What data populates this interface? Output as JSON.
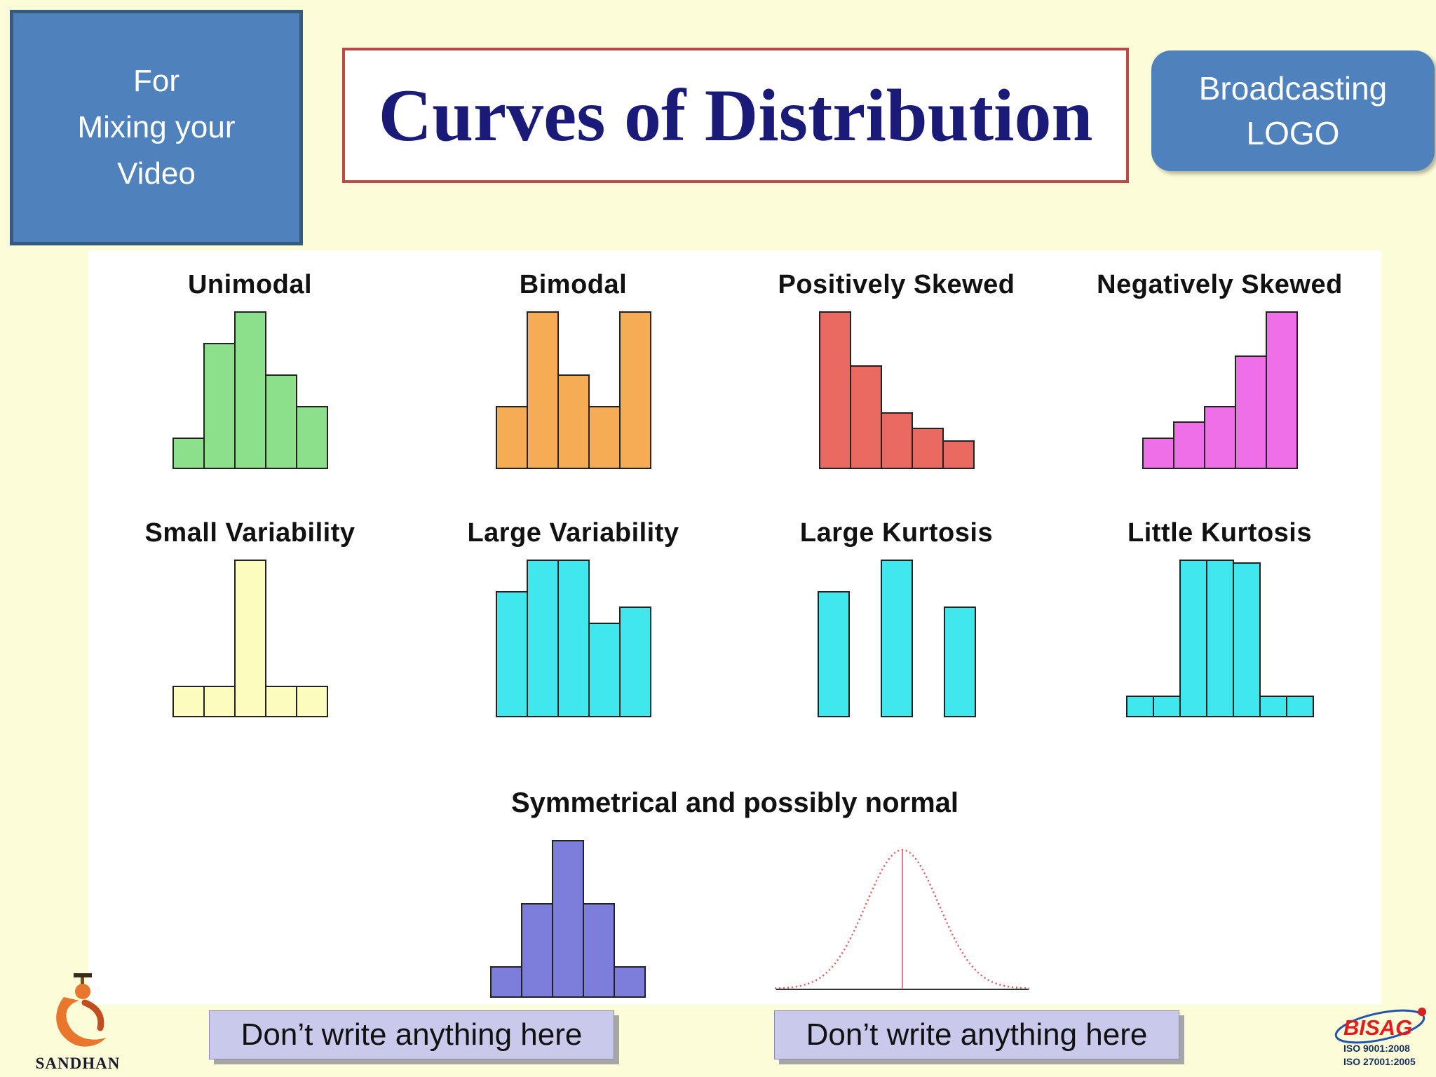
{
  "slide": {
    "title": "Curves of Distribution",
    "video_note": {
      "lines": [
        "For",
        "Mixing your",
        "Video"
      ]
    },
    "broadcast_logo": {
      "lines": [
        "Broadcasting",
        "LOGO"
      ]
    },
    "footer": {
      "left_note": "Don’t write anything here",
      "right_note": "Don’t write anything here"
    },
    "branding": {
      "sandhan": "SANDHAN",
      "bisag": {
        "name": "BISAG",
        "iso_line1": "ISO 9001:2008",
        "iso_line2": "ISO 27001:2005"
      }
    },
    "colors": {
      "background": "#FCFCD8",
      "panel": "#FFFFFF",
      "blue_box": "#4F81BD",
      "title_text": "#1A1A78",
      "title_border": "#B94A48",
      "note_box": "#C9C9EB"
    }
  },
  "chart_data": [
    {
      "type": "bar",
      "title": "Unimodal",
      "values": [
        1,
        4,
        5,
        3,
        2
      ],
      "ymax": 5,
      "color": "#8CE08C"
    },
    {
      "type": "bar",
      "title": "Bimodal",
      "values": [
        2,
        5,
        3,
        2,
        5
      ],
      "ymax": 5,
      "color": "#F6AC54"
    },
    {
      "type": "bar",
      "title": "Positively Skewed",
      "values": [
        5,
        3.3,
        1.8,
        1.3,
        0.9
      ],
      "ymax": 5,
      "color": "#EA6A62"
    },
    {
      "type": "bar",
      "title": "Negatively Skewed",
      "values": [
        1,
        1.5,
        2,
        3.6,
        5
      ],
      "ymax": 5,
      "color": "#EE6FE8"
    },
    {
      "type": "bar",
      "title": "Small Variability",
      "values": [
        1,
        1,
        5,
        1,
        1
      ],
      "ymax": 5,
      "color": "#FCFCBE"
    },
    {
      "type": "bar",
      "title": "Large Variability",
      "values": [
        4,
        5,
        5,
        3,
        3.5
      ],
      "ymax": 5,
      "color": "#40E8EE"
    },
    {
      "type": "bar",
      "title": "Large Kurtosis",
      "values": [
        4,
        0,
        5,
        0,
        3.5
      ],
      "ymax": 5,
      "color": "#40E8EE"
    },
    {
      "type": "bar",
      "title": "Little Kurtosis",
      "values": [
        0.7,
        0.7,
        5,
        5,
        4.9,
        0.7,
        0.7
      ],
      "ymax": 5,
      "color": "#40E8EE"
    },
    {
      "type": "bar",
      "title": "Symmetrical and possibly normal",
      "values": [
        1,
        3,
        5,
        3,
        1
      ],
      "ymax": 5,
      "color": "#7D7EDC"
    },
    {
      "type": "line",
      "title": "Symmetrical and possibly normal (curve)",
      "description": "red dotted normal bell curve with vertical center line over a horizontal baseline",
      "color": "#E05858"
    }
  ]
}
